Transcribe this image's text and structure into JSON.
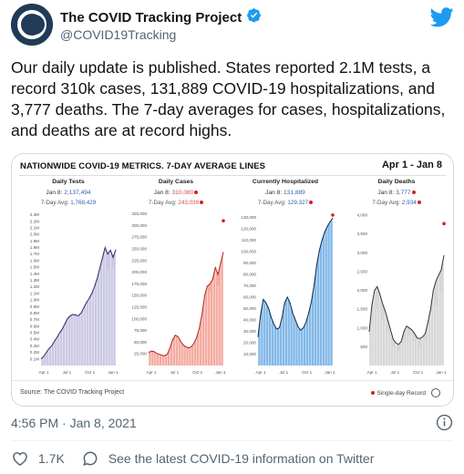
{
  "tweet": {
    "display_name": "The COVID Tracking Project",
    "handle": "@COVID19Tracking",
    "text": "Our daily update is published. States reported 2.1M tests, a record 310k cases, 131,889 COVID-19 hospitalizations, and 3,777 deaths. The 7-day averages for cases, hospitalizations, and deaths are at record highs.",
    "timestamp": "4:56 PM · Jan 8, 2021",
    "like_count": "1.7K",
    "covid_link": "See the latest COVID-19 information on Twitter"
  },
  "card": {
    "title": "NATIONWIDE COVID-19 METRICS. 7-DAY AVERAGE LINES",
    "date_range": "Apr 1 - Jan 8",
    "source": "Source: The COVID Tracking Project",
    "legend_label": "Single-day Record",
    "latest_label": "Jan 8:",
    "avg_label": "7-Day Avg:"
  },
  "colors": {
    "tests": "#b9b6dc",
    "tests_line": "#2c2768",
    "cases": "#f08f82",
    "cases_line": "#b3281e",
    "hosp": "#5aa0e0",
    "hosp_line": "#0c2a4c",
    "deaths": "#c8c8c8",
    "deaths_line": "#333333",
    "record": "#d81e1e"
  },
  "chart_data": [
    {
      "type": "area",
      "title": "Daily Tests",
      "latest": "2,137,494",
      "average": "1,768,429",
      "record": false,
      "x_ticks": [
        "Apr 1",
        "Jul 1",
        "Oct 1",
        "Jan 1"
      ],
      "y_ticks": [
        "2.3M",
        "2.2M",
        "2.1M",
        "2.0M",
        "1.9M",
        "1.8M",
        "1.7M",
        "1.6M",
        "1.5M",
        "1.4M",
        "1.3M",
        "1.2M",
        "1.1M",
        "1.0M",
        "0.9M",
        "0.8M",
        "0.7M",
        "0.6M",
        "0.5M",
        "0.4M",
        "0.3M",
        "0.2M",
        "0.1M"
      ],
      "y_tick_values": [
        2300000,
        2200000,
        2100000,
        2000000,
        1900000,
        1800000,
        1700000,
        1600000,
        1500000,
        1400000,
        1300000,
        1200000,
        1100000,
        1000000,
        900000,
        800000,
        700000,
        600000,
        500000,
        400000,
        300000,
        200000,
        100000
      ],
      "ylim": [
        0,
        2350000
      ],
      "avg_values": [
        100000,
        140000,
        200000,
        260000,
        300000,
        370000,
        430000,
        500000,
        560000,
        640000,
        720000,
        760000,
        780000,
        770000,
        760000,
        800000,
        880000,
        960000,
        1020000,
        1100000,
        1200000,
        1320000,
        1480000,
        1640000,
        1800000,
        1700000,
        1760000,
        1650000,
        1768429
      ],
      "daily_values": [
        90000,
        150000,
        210000,
        250000,
        320000,
        380000,
        420000,
        520000,
        540000,
        660000,
        740000,
        720000,
        820000,
        740000,
        790000,
        780000,
        900000,
        940000,
        1060000,
        1080000,
        1240000,
        1300000,
        1520000,
        1700000,
        2000000,
        1450000,
        2100000,
        1500000,
        2137494
      ]
    },
    {
      "type": "area",
      "title": "Daily Cases",
      "latest": "310,080",
      "average": "243,039",
      "record": true,
      "x_ticks": [
        "Apr 1",
        "Jul 1",
        "Oct 1",
        "Jan 1"
      ],
      "y_ticks": [
        "325,000",
        "300,000",
        "275,000",
        "250,000",
        "225,000",
        "200,000",
        "175,000",
        "150,000",
        "125,000",
        "100,000",
        "75,000",
        "50,000",
        "25,000"
      ],
      "y_tick_values": [
        325000,
        300000,
        275000,
        250000,
        225000,
        200000,
        175000,
        150000,
        125000,
        100000,
        75000,
        50000,
        25000
      ],
      "ylim": [
        0,
        330000
      ],
      "avg_values": [
        28000,
        31000,
        30000,
        26000,
        24000,
        22000,
        21000,
        24000,
        38000,
        55000,
        65000,
        62000,
        52000,
        44000,
        40000,
        38000,
        40000,
        48000,
        60000,
        80000,
        110000,
        150000,
        170000,
        175000,
        185000,
        210000,
        195000,
        220000,
        243039
      ],
      "daily_values": [
        25000,
        33000,
        28000,
        27000,
        22000,
        24000,
        19000,
        28000,
        40000,
        62000,
        70000,
        60000,
        55000,
        42000,
        43000,
        36000,
        44000,
        50000,
        66000,
        88000,
        125000,
        180000,
        195000,
        160000,
        230000,
        260000,
        170000,
        280000,
        310080
      ]
    },
    {
      "type": "area",
      "title": "Currently Hospitalized",
      "latest": "131,889",
      "average": "129,327",
      "record": true,
      "x_ticks": [
        "Apr 1",
        "Jul 1",
        "Oct 1",
        "Jan 1"
      ],
      "y_ticks": [
        "130,000",
        "120,000",
        "110,000",
        "100,000",
        "90,000",
        "80,000",
        "70,000",
        "60,000",
        "50,000",
        "40,000",
        "30,000",
        "20,000",
        "10,000"
      ],
      "y_tick_values": [
        130000,
        120000,
        110000,
        100000,
        90000,
        80000,
        70000,
        60000,
        50000,
        40000,
        30000,
        20000,
        10000
      ],
      "ylim": [
        0,
        135000
      ],
      "avg_values": [
        25000,
        45000,
        58000,
        55000,
        50000,
        42000,
        36000,
        32000,
        33000,
        42000,
        55000,
        60000,
        55000,
        46000,
        40000,
        34000,
        31000,
        33000,
        38000,
        46000,
        56000,
        70000,
        88000,
        101000,
        110000,
        117000,
        122000,
        126000,
        129327
      ],
      "daily_values": [
        25000,
        45000,
        58000,
        55000,
        50000,
        42000,
        36000,
        32000,
        33000,
        42000,
        55000,
        60000,
        55000,
        46000,
        40000,
        34000,
        31000,
        33000,
        38000,
        46000,
        56000,
        70000,
        88000,
        101000,
        110000,
        117000,
        122000,
        126000,
        131889
      ]
    },
    {
      "type": "area",
      "title": "Daily Deaths",
      "latest": "3,777",
      "average": "2,934",
      "record": true,
      "x_ticks": [
        "Apr 1",
        "Jul 1",
        "Oct 1",
        "Jan 1"
      ],
      "y_ticks": [
        "4,000",
        "3,500",
        "3,000",
        "2,500",
        "2,000",
        "1,500",
        "1,000",
        "500"
      ],
      "y_tick_values": [
        4000,
        3500,
        3000,
        2500,
        2000,
        1500,
        1000,
        500
      ],
      "ylim": [
        0,
        4100
      ],
      "avg_values": [
        900,
        1600,
        2000,
        2100,
        1900,
        1650,
        1450,
        1200,
        950,
        700,
        600,
        560,
        640,
        900,
        1050,
        1000,
        950,
        850,
        730,
        720,
        760,
        850,
        1150,
        1500,
        2000,
        2250,
        2400,
        2550,
        2934
      ],
      "daily_values": [
        800,
        1800,
        2600,
        1500,
        2200,
        1200,
        1800,
        900,
        1100,
        500,
        800,
        400,
        900,
        700,
        1400,
        800,
        1200,
        650,
        900,
        500,
        1000,
        700,
        1600,
        1400,
        2700,
        1600,
        3000,
        2000,
        3777
      ]
    }
  ]
}
